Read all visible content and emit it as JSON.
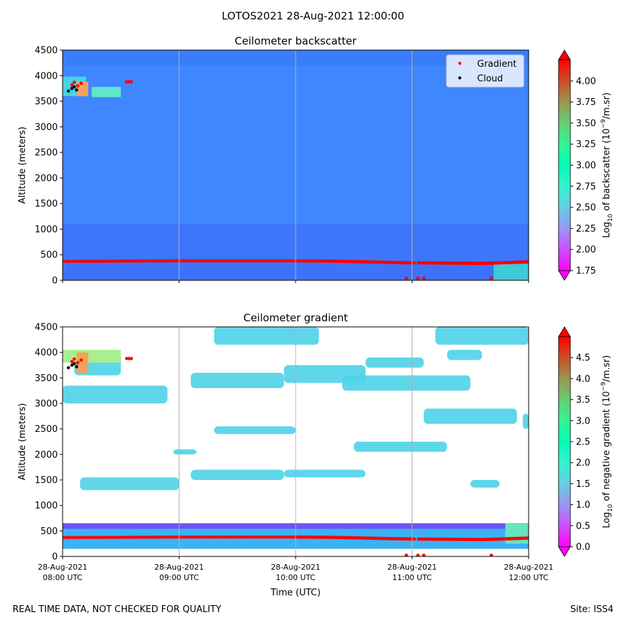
{
  "figure": {
    "suptitle": "LOTOS2021 28-Aug-2021 12:00:00",
    "footer_left": "REAL TIME DATA, NOT CHECKED FOR QUALITY",
    "footer_right": "Site: ISS4"
  },
  "colors": {
    "gradient_marker": "#ff0000",
    "cloud_marker": "#000000",
    "background_fill": "#3a7bff",
    "boundary_layer": "#3bb2f5",
    "cloud_layer": "#4fd2e8",
    "gridline": "#b0b0b0"
  },
  "chart_data": [
    {
      "type": "heatmap",
      "title": "Ceilometer backscatter",
      "xlabel": "",
      "ylabel": "Altitude (meters)",
      "xlim": [
        0,
        4
      ],
      "x_unit": "hours after 28-Aug-2021 08:00 UTC",
      "ylim": [
        0,
        4500
      ],
      "yticks": [
        0,
        500,
        1000,
        1500,
        2000,
        2500,
        3000,
        3500,
        4000,
        4500
      ],
      "xticks": [
        0,
        1,
        2,
        3,
        4
      ],
      "xticklabels": [
        "",
        "",
        "",
        "",
        ""
      ],
      "grid": "vertical",
      "legend": {
        "placement": "top-right",
        "entries": [
          {
            "label": "Gradient",
            "color": "#ff0000"
          },
          {
            "label": "Cloud",
            "color": "#000000"
          }
        ]
      },
      "colorbar": {
        "label": "Log10 of backscatter (10^-9/m.sr)",
        "label_main": "Log",
        "label_sub": "10",
        "label_mid": " of backscatter (10",
        "label_sup": "−9",
        "label_end": "/m.sr)",
        "range": [
          1.75,
          4.25
        ],
        "ticks": [
          "1.75",
          "2.00",
          "2.25",
          "2.50",
          "2.75",
          "3.00",
          "3.25",
          "3.50",
          "3.75",
          "4.00"
        ],
        "tick_values": [
          1.75,
          2.0,
          2.25,
          2.5,
          2.75,
          3.0,
          3.25,
          3.5,
          3.75,
          4.0
        ]
      },
      "background_value": 2.05,
      "gradient_points": [
        [
          0.0,
          370
        ],
        [
          0.5,
          375
        ],
        [
          1.0,
          380
        ],
        [
          1.5,
          380
        ],
        [
          2.0,
          380
        ],
        [
          2.3,
          375
        ],
        [
          2.6,
          360
        ],
        [
          2.9,
          345
        ],
        [
          3.1,
          340
        ],
        [
          3.4,
          335
        ],
        [
          3.6,
          330
        ],
        [
          3.8,
          345
        ],
        [
          4.0,
          360
        ]
      ],
      "gradient_low": [
        [
          2.95,
          40
        ],
        [
          3.05,
          40
        ],
        [
          3.1,
          40
        ],
        [
          3.68,
          40
        ]
      ],
      "cloud_points": [
        [
          0.05,
          3700
        ],
        [
          0.08,
          3750
        ],
        [
          0.1,
          3780
        ],
        [
          0.12,
          3720
        ]
      ]
    },
    {
      "type": "heatmap",
      "title": "Ceilometer gradient",
      "xlabel": "Time (UTC)",
      "ylabel": "Altitude (meters)",
      "xlim": [
        0,
        4
      ],
      "ylim": [
        0,
        4500
      ],
      "yticks": [
        0,
        500,
        1000,
        1500,
        2000,
        2500,
        3000,
        3500,
        4000,
        4500
      ],
      "xticks": [
        0,
        1,
        2,
        3,
        4
      ],
      "xticklabels": [
        [
          "28-Aug-2021",
          "08:00 UTC"
        ],
        [
          "28-Aug-2021",
          "09:00 UTC"
        ],
        [
          "28-Aug-2021",
          "10:00 UTC"
        ],
        [
          "28-Aug-2021",
          "11:00 UTC"
        ],
        [
          "28-Aug-2021",
          "12:00 UTC"
        ]
      ],
      "grid": "vertical",
      "colorbar": {
        "label": "Log10 of negative gradient (10^-9/m.sr)",
        "label_main": "Log",
        "label_sub": "10",
        "label_mid": " of negative gradient (10",
        "label_sup": "−9",
        "label_end": "/m.sr)",
        "range": [
          0.0,
          5.0
        ],
        "ticks": [
          "0.0",
          "0.5",
          "1.0",
          "1.5",
          "2.0",
          "2.5",
          "3.0",
          "3.5",
          "4.0",
          "4.5"
        ],
        "tick_values": [
          0.0,
          0.5,
          1.0,
          1.5,
          2.0,
          2.5,
          3.0,
          3.5,
          4.0,
          4.5
        ]
      },
      "boundary_layer": {
        "bottom": 150,
        "top": 650
      },
      "cloud_patches": [
        {
          "x0": 1.9,
          "x1": 2.6,
          "y0": 3400,
          "y1": 3750
        },
        {
          "x0": 2.4,
          "x1": 3.5,
          "y0": 3250,
          "y1": 3550
        },
        {
          "x0": 1.1,
          "x1": 1.9,
          "y0": 3300,
          "y1": 3600
        },
        {
          "x0": 0.1,
          "x1": 0.5,
          "y0": 3550,
          "y1": 3950
        },
        {
          "x0": 0.0,
          "x1": 0.9,
          "y0": 3000,
          "y1": 3350
        },
        {
          "x0": 2.5,
          "x1": 3.3,
          "y0": 2050,
          "y1": 2250
        },
        {
          "x0": 3.1,
          "x1": 3.9,
          "y0": 2600,
          "y1": 2900
        },
        {
          "x0": 0.15,
          "x1": 1.0,
          "y0": 1300,
          "y1": 1550
        },
        {
          "x0": 1.1,
          "x1": 1.9,
          "y0": 1500,
          "y1": 1700
        },
        {
          "x0": 1.9,
          "x1": 2.6,
          "y0": 1550,
          "y1": 1700
        },
        {
          "x0": 1.3,
          "x1": 2.0,
          "y0": 2400,
          "y1": 2550
        },
        {
          "x0": 0.95,
          "x1": 1.15,
          "y0": 2000,
          "y1": 2100
        },
        {
          "x0": 3.5,
          "x1": 3.75,
          "y0": 1350,
          "y1": 1500
        },
        {
          "x0": 3.2,
          "x1": 4.0,
          "y0": 4150,
          "y1": 4500
        },
        {
          "x0": 1.3,
          "x1": 2.2,
          "y0": 4150,
          "y1": 4500
        },
        {
          "x0": 2.6,
          "x1": 3.1,
          "y0": 3700,
          "y1": 3900
        },
        {
          "x0": 3.3,
          "x1": 3.6,
          "y0": 3850,
          "y1": 4050
        },
        {
          "x0": 3.95,
          "x1": 4.0,
          "y0": 2500,
          "y1": 2800
        }
      ],
      "gradient_points": [
        [
          0.0,
          370
        ],
        [
          0.5,
          375
        ],
        [
          1.0,
          380
        ],
        [
          1.5,
          380
        ],
        [
          2.0,
          380
        ],
        [
          2.3,
          375
        ],
        [
          2.6,
          360
        ],
        [
          2.9,
          345
        ],
        [
          3.1,
          340
        ],
        [
          3.4,
          335
        ],
        [
          3.6,
          330
        ],
        [
          3.8,
          345
        ],
        [
          4.0,
          360
        ]
      ],
      "gradient_low": [
        [
          2.95,
          20
        ],
        [
          3.05,
          20
        ],
        [
          3.1,
          20
        ],
        [
          3.68,
          20
        ]
      ],
      "cloud_points": [
        [
          0.05,
          3700
        ],
        [
          0.08,
          3750
        ],
        [
          0.1,
          3780
        ],
        [
          0.12,
          3720
        ]
      ]
    }
  ]
}
